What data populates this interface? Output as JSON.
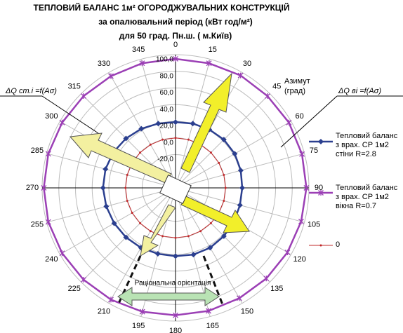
{
  "chart_data": {
    "type": "radar",
    "title": "ТЕПЛОВИЙ БАЛАНС 1м² ОГОРОДЖУВАЛЬНИХ КОНСТРУКЦІЙ",
    "subtitle": [
      "за опалювальний період (кВт год/м²)",
      "для 50 град. Пн.ш. ( м.Київ)"
    ],
    "annotations": [
      "ΔQ ст.і =f(Aσ)",
      "ΔQ ві =f(Aσ)",
      "Азимут",
      "(град)",
      "Раціональна орієнтація"
    ],
    "categories": [
      "0",
      "15",
      "30",
      "45",
      "60",
      "75",
      "90",
      "105",
      "120",
      "135",
      "150",
      "165",
      "180",
      "195",
      "210",
      "225",
      "240",
      "255",
      "270",
      "285",
      "300",
      "315",
      "330",
      "345"
    ],
    "ylim": [
      -60,
      100
    ],
    "yticks": [
      {
        "value": -20,
        "label": "-20,0"
      },
      {
        "value": 0,
        "label": "0,0"
      },
      {
        "value": 20,
        "label": "20,0"
      },
      {
        "value": 40,
        "label": "40,0"
      },
      {
        "value": 60,
        "label": "60,0"
      },
      {
        "value": 80,
        "label": "80,0"
      },
      {
        "value": 100,
        "label": "100,0"
      }
    ],
    "grid": true,
    "series": [
      {
        "name": "Тепловий баланс з врах. СР 1м2 стіни R=2.8",
        "color": "#2b3f8f",
        "marker": "diamond",
        "values": [
          19,
          20,
          21,
          22,
          22,
          21,
          20,
          20,
          21,
          22,
          23,
          23,
          22,
          22,
          23,
          24,
          25,
          26,
          27,
          27,
          26,
          24,
          22,
          20
        ]
      },
      {
        "name": "Тепловий баланс з врах. СР 1м2 вікна R=0.7",
        "color": "#9b3fb5",
        "marker": "star",
        "values": [
          95,
          95,
          96,
          96,
          97,
          97,
          97,
          96,
          95,
          94,
          93,
          93,
          93,
          94,
          95,
          96,
          97,
          98,
          98,
          98,
          97,
          96,
          95,
          95
        ]
      },
      {
        "name": "0",
        "color": "#c0282a",
        "marker": "dot",
        "values": [
          0,
          0,
          0,
          0,
          0,
          0,
          0,
          0,
          0,
          0,
          0,
          0,
          0,
          0,
          0,
          0,
          0,
          0,
          0,
          0,
          0,
          0,
          0,
          0
        ]
      }
    ]
  }
}
